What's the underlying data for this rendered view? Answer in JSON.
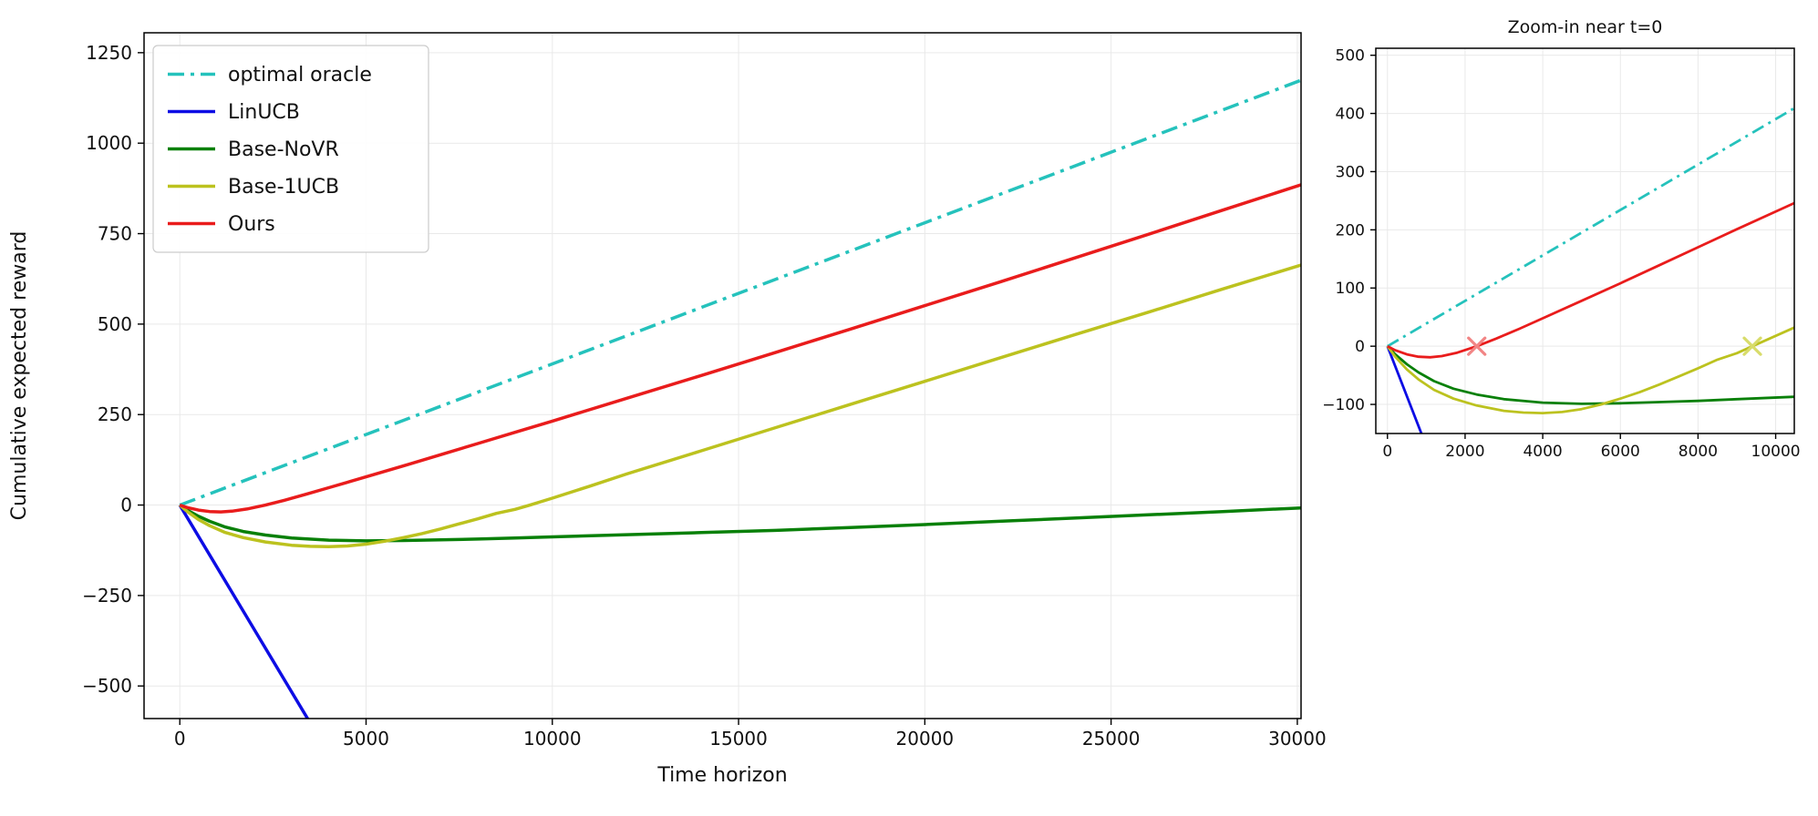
{
  "figure": {
    "background": "#ffffff"
  },
  "chart_data": [
    {
      "id": "main-plot",
      "type": "line",
      "title": "",
      "xlabel": "Time horizon",
      "ylabel": "Cumulative expected reward",
      "xlim": [
        -960,
        30100
      ],
      "ylim": [
        -590,
        1305
      ],
      "xticks": [
        0,
        5000,
        10000,
        15000,
        20000,
        25000,
        30000
      ],
      "yticks": [
        -500,
        -250,
        0,
        250,
        500,
        750,
        1000,
        1250
      ],
      "grid": true,
      "legend": {
        "show": true,
        "position": "upper-left"
      },
      "series": [
        {
          "name": "optimal oracle",
          "color": "#25c2bc",
          "style": "dashdot",
          "points": [
            [
              0,
              0
            ],
            [
              30100,
              1174
            ]
          ]
        },
        {
          "name": "LinUCB",
          "color": "#0d0de4",
          "style": "solid",
          "points": [
            [
              0,
              0
            ],
            [
              4000,
              -688
            ]
          ]
        },
        {
          "name": "Base-NoVR",
          "color": "#098009",
          "style": "solid",
          "points": [
            [
              0,
              0
            ],
            [
              200,
              -14
            ],
            [
              500,
              -31
            ],
            [
              800,
              -45
            ],
            [
              1200,
              -60
            ],
            [
              1700,
              -73
            ],
            [
              2300,
              -83
            ],
            [
              3000,
              -91
            ],
            [
              4000,
              -97
            ],
            [
              5000,
              -99
            ],
            [
              6000,
              -98
            ],
            [
              7000,
              -96
            ],
            [
              8000,
              -94
            ],
            [
              9000,
              -91
            ],
            [
              10000,
              -88
            ],
            [
              12000,
              -82
            ],
            [
              14000,
              -76
            ],
            [
              16000,
              -70
            ],
            [
              18000,
              -62
            ],
            [
              20000,
              -54
            ],
            [
              22000,
              -45
            ],
            [
              24000,
              -36
            ],
            [
              26000,
              -27
            ],
            [
              28000,
              -18
            ],
            [
              30100,
              -8
            ]
          ]
        },
        {
          "name": "Base-1UCB",
          "color": "#bcc21f",
          "style": "solid",
          "points": [
            [
              0,
              0
            ],
            [
              200,
              -18
            ],
            [
              500,
              -40
            ],
            [
              800,
              -57
            ],
            [
              1200,
              -75
            ],
            [
              1700,
              -90
            ],
            [
              2300,
              -102
            ],
            [
              3000,
              -111
            ],
            [
              3500,
              -114
            ],
            [
              4000,
              -115
            ],
            [
              4500,
              -113
            ],
            [
              5000,
              -108
            ],
            [
              5500,
              -100
            ],
            [
              6000,
              -90
            ],
            [
              6500,
              -79
            ],
            [
              7000,
              -66
            ],
            [
              7500,
              -52
            ],
            [
              8000,
              -38
            ],
            [
              8500,
              -23
            ],
            [
              9000,
              -12
            ],
            [
              9400,
              0
            ],
            [
              10000,
              19
            ],
            [
              11000,
              52
            ],
            [
              12000,
              86
            ],
            [
              14000,
              150
            ],
            [
              16000,
              214
            ],
            [
              18000,
              278
            ],
            [
              20000,
              342
            ],
            [
              22000,
              406
            ],
            [
              24000,
              470
            ],
            [
              26000,
              533
            ],
            [
              28000,
              597
            ],
            [
              30100,
              663
            ]
          ]
        },
        {
          "name": "Ours",
          "color": "#e91c1c",
          "style": "solid",
          "points": [
            [
              0,
              0
            ],
            [
              200,
              -7
            ],
            [
              500,
              -14
            ],
            [
              800,
              -18
            ],
            [
              1100,
              -19
            ],
            [
              1400,
              -17
            ],
            [
              1800,
              -11
            ],
            [
              2300,
              0
            ],
            [
              2800,
              13
            ],
            [
              3400,
              30
            ],
            [
              4000,
              48
            ],
            [
              5000,
              78
            ],
            [
              6000,
              108
            ],
            [
              7000,
              139
            ],
            [
              8000,
              170
            ],
            [
              9000,
              201
            ],
            [
              10000,
              232
            ],
            [
              12000,
              295
            ],
            [
              14000,
              358
            ],
            [
              16000,
              422
            ],
            [
              18000,
              486
            ],
            [
              20000,
              551
            ],
            [
              22000,
              616
            ],
            [
              24000,
              682
            ],
            [
              26000,
              748
            ],
            [
              28000,
              815
            ],
            [
              30100,
              885
            ]
          ]
        }
      ],
      "markers": []
    },
    {
      "id": "zoom-plot",
      "type": "line",
      "title": "Zoom-in near t=0",
      "xlabel": "",
      "ylabel": "",
      "xlim": [
        -300,
        10480
      ],
      "ylim": [
        -150,
        512
      ],
      "xticks": [
        0,
        2000,
        4000,
        6000,
        8000,
        10000
      ],
      "yticks": [
        -100,
        0,
        100,
        200,
        300,
        400,
        500
      ],
      "grid": true,
      "legend": {
        "show": false
      },
      "series": [
        {
          "name": "optimal oracle",
          "color": "#25c2bc",
          "style": "dashdot",
          "points": [
            [
              0,
              0
            ],
            [
              10480,
              409
            ]
          ]
        },
        {
          "name": "LinUCB",
          "color": "#0d0de4",
          "style": "solid",
          "points": [
            [
              0,
              0
            ],
            [
              1200,
              -206
            ]
          ]
        },
        {
          "name": "Base-NoVR",
          "color": "#098009",
          "style": "solid",
          "points": [
            [
              0,
              0
            ],
            [
              200,
              -14
            ],
            [
              500,
              -31
            ],
            [
              800,
              -45
            ],
            [
              1200,
              -60
            ],
            [
              1700,
              -73
            ],
            [
              2300,
              -83
            ],
            [
              3000,
              -91
            ],
            [
              4000,
              -97
            ],
            [
              5000,
              -99
            ],
            [
              6000,
              -98
            ],
            [
              7000,
              -96
            ],
            [
              8000,
              -94
            ],
            [
              9000,
              -91
            ],
            [
              10480,
              -87
            ]
          ]
        },
        {
          "name": "Base-1UCB",
          "color": "#bcc21f",
          "style": "solid",
          "points": [
            [
              0,
              0
            ],
            [
              200,
              -18
            ],
            [
              500,
              -40
            ],
            [
              800,
              -57
            ],
            [
              1200,
              -75
            ],
            [
              1700,
              -90
            ],
            [
              2300,
              -102
            ],
            [
              3000,
              -111
            ],
            [
              3500,
              -114
            ],
            [
              4000,
              -115
            ],
            [
              4500,
              -113
            ],
            [
              5000,
              -108
            ],
            [
              5500,
              -100
            ],
            [
              6000,
              -90
            ],
            [
              6500,
              -79
            ],
            [
              7000,
              -66
            ],
            [
              7500,
              -52
            ],
            [
              8000,
              -38
            ],
            [
              8500,
              -23
            ],
            [
              9000,
              -12
            ],
            [
              9400,
              0
            ],
            [
              10480,
              32
            ]
          ]
        },
        {
          "name": "Ours",
          "color": "#e91c1c",
          "style": "solid",
          "points": [
            [
              0,
              0
            ],
            [
              200,
              -7
            ],
            [
              500,
              -14
            ],
            [
              800,
              -18
            ],
            [
              1100,
              -19
            ],
            [
              1400,
              -17
            ],
            [
              1800,
              -11
            ],
            [
              2300,
              0
            ],
            [
              2800,
              13
            ],
            [
              3400,
              30
            ],
            [
              4000,
              48
            ],
            [
              5000,
              78
            ],
            [
              6000,
              108
            ],
            [
              7000,
              139
            ],
            [
              8000,
              170
            ],
            [
              9000,
              201
            ],
            [
              10480,
              246
            ]
          ]
        }
      ],
      "markers": [
        {
          "x": 2300,
          "y": 0,
          "symbol": "x",
          "color": "#f28585",
          "size": 9
        },
        {
          "x": 9400,
          "y": 0,
          "symbol": "x",
          "color": "#d8dc6a",
          "size": 9
        }
      ]
    }
  ]
}
